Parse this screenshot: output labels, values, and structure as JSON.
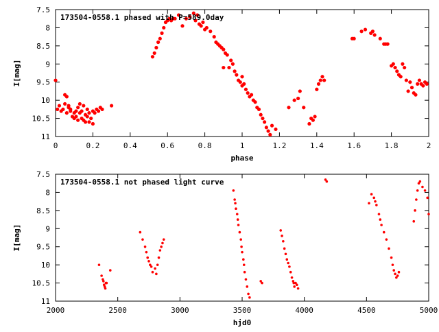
{
  "chart_data": [
    {
      "type": "scatter",
      "title": "173504-0558.1 phased with P=589.0day",
      "xlabel": "phase",
      "ylabel": "I[mag]",
      "xlim": [
        0,
        2
      ],
      "ylim": [
        7.5,
        11
      ],
      "y_inverted": true,
      "xticks": [
        0,
        0.2,
        0.4,
        0.6,
        0.8,
        1,
        1.2,
        1.4,
        1.6,
        1.8,
        2
      ],
      "xtick_labels": [
        "0",
        "0.2",
        "0.4",
        "0.6",
        "0.8",
        "1",
        "1.2",
        "1.4",
        "1.6",
        "1.8",
        "2"
      ],
      "yticks": [
        7.5,
        8,
        8.5,
        9,
        9.5,
        10,
        10.5,
        11
      ],
      "ytick_labels": [
        "7.5",
        "8",
        "8.5",
        "9",
        "9.5",
        "10",
        "10.5",
        "11"
      ],
      "color": "#ff0000",
      "series": [
        {
          "x": [
            0.0,
            0.01,
            0.02,
            0.03,
            0.04,
            0.05,
            0.05,
            0.06,
            0.06,
            0.07,
            0.07,
            0.08,
            0.08,
            0.09,
            0.1,
            0.1,
            0.11,
            0.11,
            0.12,
            0.12,
            0.13,
            0.13,
            0.14,
            0.14,
            0.15,
            0.15,
            0.16,
            0.16,
            0.17,
            0.17,
            0.18,
            0.18,
            0.19,
            0.2,
            0.2,
            0.21,
            0.22,
            0.23,
            0.24,
            0.25,
            0.3,
            0.52,
            0.53,
            0.54,
            0.55,
            0.56,
            0.57,
            0.58,
            0.59,
            0.6,
            0.61,
            0.62,
            0.63,
            0.64,
            0.66,
            0.68,
            0.7,
            0.72,
            0.74,
            0.75,
            0.76,
            0.77,
            0.78,
            0.79,
            0.8,
            0.81,
            0.83,
            0.85,
            0.86,
            0.87,
            0.88,
            0.89,
            0.9,
            0.9,
            0.91,
            0.92,
            0.93,
            0.94,
            0.95,
            0.96,
            0.97,
            0.98,
            0.99,
            1.0,
            1.0,
            1.01,
            1.02,
            1.03,
            1.04,
            1.05,
            1.06,
            1.07,
            1.08,
            1.09,
            1.1,
            1.11,
            1.12,
            1.13,
            1.14,
            1.15,
            1.16,
            1.18,
            1.25,
            1.28,
            1.3,
            1.31,
            1.33,
            1.36,
            1.37,
            1.38,
            1.39,
            1.4,
            1.41,
            1.42,
            1.43,
            1.44,
            1.59,
            1.6,
            1.64,
            1.66,
            1.69,
            1.7,
            1.71,
            1.74,
            1.76,
            1.77,
            1.78,
            1.8,
            1.81,
            1.82,
            1.83,
            1.84,
            1.85,
            1.86,
            1.87,
            1.88,
            1.89,
            1.9,
            1.91,
            1.92,
            1.93,
            1.94,
            1.95,
            1.96,
            1.97,
            1.98,
            1.99
          ],
          "y": [
            9.45,
            10.25,
            10.15,
            10.3,
            10.25,
            9.85,
            10.1,
            9.9,
            10.35,
            10.2,
            10.15,
            10.3,
            10.25,
            10.45,
            10.35,
            10.5,
            10.3,
            10.45,
            10.55,
            10.2,
            10.35,
            10.1,
            10.5,
            10.3,
            10.15,
            10.55,
            10.4,
            10.6,
            10.25,
            10.45,
            10.35,
            10.6,
            10.5,
            10.3,
            10.65,
            10.35,
            10.25,
            10.3,
            10.2,
            10.25,
            10.15,
            8.8,
            8.7,
            8.55,
            8.4,
            8.3,
            8.15,
            8.0,
            7.85,
            7.8,
            7.75,
            7.8,
            7.75,
            7.75,
            7.65,
            7.95,
            7.75,
            7.7,
            7.6,
            7.8,
            7.65,
            7.9,
            7.95,
            7.85,
            8.05,
            8.0,
            8.1,
            8.25,
            8.4,
            8.45,
            8.5,
            8.55,
            8.6,
            9.1,
            8.7,
            8.75,
            9.1,
            8.9,
            9.0,
            9.2,
            9.3,
            9.45,
            9.5,
            9.6,
            9.35,
            9.55,
            9.7,
            9.8,
            9.9,
            9.85,
            10.0,
            10.05,
            10.2,
            10.25,
            10.4,
            10.5,
            10.6,
            10.75,
            10.85,
            10.95,
            10.7,
            10.8,
            10.2,
            10.0,
            9.95,
            9.75,
            10.2,
            10.65,
            10.5,
            10.55,
            10.45,
            9.7,
            9.55,
            9.45,
            9.35,
            9.45,
            8.3,
            8.3,
            8.1,
            8.05,
            8.15,
            8.1,
            8.2,
            8.3,
            8.45,
            8.45,
            8.45,
            9.05,
            9.0,
            9.1,
            9.2,
            9.3,
            9.35,
            9.0,
            9.1,
            9.45,
            9.75,
            9.5,
            9.65,
            9.8,
            9.85,
            9.55,
            9.45,
            9.55,
            9.6,
            9.5,
            9.55
          ]
        }
      ]
    },
    {
      "type": "scatter",
      "title": "173504-0558.1 not phased light curve",
      "xlabel": "hjd0",
      "ylabel": "I[mag]",
      "xlim": [
        2000,
        5000
      ],
      "ylim": [
        7.5,
        11
      ],
      "y_inverted": true,
      "xticks": [
        2000,
        2500,
        3000,
        3500,
        4000,
        4500,
        5000
      ],
      "xtick_labels": [
        "2000",
        "2500",
        "3000",
        "3500",
        "4000",
        "4500",
        "5000"
      ],
      "yticks": [
        7.5,
        8,
        8.5,
        9,
        9.5,
        10,
        10.5,
        11
      ],
      "ytick_labels": [
        "7.5",
        "8",
        "8.5",
        "9",
        "9.5",
        "10",
        "10.5",
        "11"
      ],
      "color": "#ff0000",
      "series": [
        {
          "x": [
            2350,
            2370,
            2380,
            2385,
            2390,
            2395,
            2400,
            2405,
            2410,
            2440,
            2680,
            2700,
            2720,
            2730,
            2740,
            2750,
            2760,
            2770,
            2780,
            2800,
            2810,
            2820,
            2830,
            2840,
            2850,
            2860,
            2870,
            3430,
            3440,
            3445,
            3450,
            3460,
            3465,
            3470,
            3480,
            3490,
            3495,
            3500,
            3510,
            3515,
            3520,
            3530,
            3540,
            3550,
            3560,
            3650,
            3660,
            3810,
            3820,
            3830,
            3840,
            3850,
            3860,
            3870,
            3880,
            3890,
            3900,
            3910,
            3915,
            3920,
            3930,
            3940,
            3950,
            4170,
            4180,
            4520,
            4540,
            4560,
            4570,
            4580,
            4600,
            4610,
            4620,
            4640,
            4660,
            4680,
            4700,
            4710,
            4720,
            4730,
            4740,
            4750,
            4760,
            4880,
            4890,
            4900,
            4910,
            4920,
            4930,
            4950,
            4970,
            4990,
            5000
          ],
          "y": [
            10.0,
            10.3,
            10.4,
            10.45,
            10.55,
            10.6,
            10.65,
            10.5,
            10.5,
            10.15,
            9.1,
            9.3,
            9.5,
            9.65,
            9.8,
            9.9,
            10.0,
            10.05,
            10.2,
            10.1,
            10.25,
            10.0,
            9.8,
            9.6,
            9.5,
            9.4,
            9.3,
            7.95,
            8.2,
            8.3,
            8.45,
            8.6,
            8.75,
            8.9,
            9.1,
            9.3,
            9.5,
            9.65,
            9.85,
            10.0,
            10.2,
            10.4,
            10.6,
            10.8,
            10.9,
            10.45,
            10.5,
            9.05,
            9.2,
            9.35,
            9.55,
            9.7,
            9.85,
            9.95,
            10.05,
            10.2,
            10.35,
            10.45,
            10.5,
            10.6,
            10.5,
            10.55,
            10.65,
            7.65,
            7.7,
            8.3,
            8.05,
            8.15,
            8.25,
            8.35,
            8.6,
            8.75,
            8.9,
            9.1,
            9.3,
            9.55,
            9.8,
            10.0,
            10.15,
            10.25,
            10.35,
            10.3,
            10.2,
            8.8,
            8.5,
            8.2,
            7.95,
            7.75,
            7.7,
            7.85,
            7.95,
            8.15,
            8.6
          ]
        }
      ]
    }
  ]
}
